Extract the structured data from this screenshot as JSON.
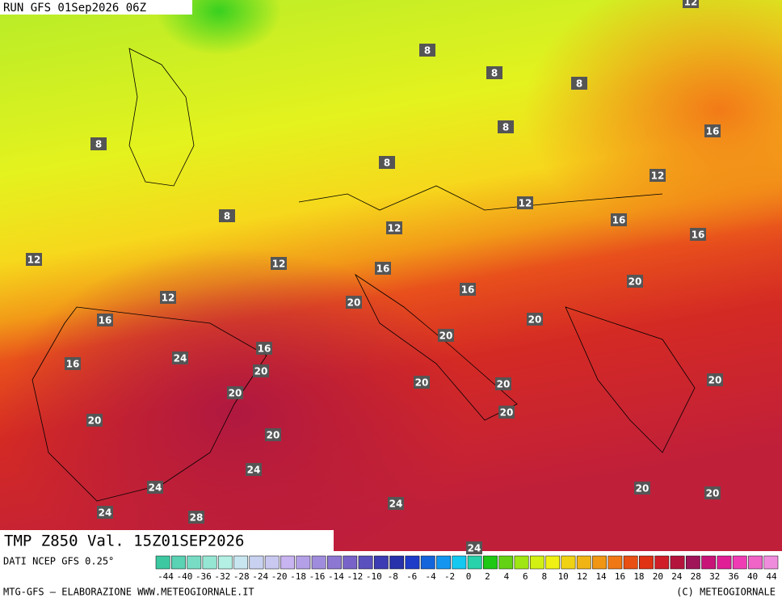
{
  "header": {
    "run": "RUN GFS 01Sep2026 06Z"
  },
  "map": {
    "labels": [
      "12",
      "8",
      "8",
      "8",
      "8",
      "8",
      "8",
      "8",
      "16",
      "12",
      "12",
      "16",
      "12",
      "16",
      "12",
      "12",
      "16",
      "20",
      "12",
      "16",
      "20",
      "16",
      "20",
      "20",
      "24",
      "16",
      "16",
      "20",
      "20",
      "20",
      "20",
      "20",
      "20",
      "20",
      "20",
      "24",
      "24",
      "20",
      "20",
      "24",
      "24",
      "28",
      "24"
    ]
  },
  "footer": {
    "title": "TMP Z850 Val. 15Z01SEP2026",
    "source": "DATI NCEP GFS 0.25°",
    "credit": "MTG-GFS — ELABORAZIONE WWW.METEOGIORNALE.IT",
    "copyright": "(C) METEOGIORNALE"
  },
  "colorbar": {
    "labels": [
      "-44",
      "-40",
      "-36",
      "-32",
      "-28",
      "-24",
      "-20",
      "-18",
      "-16",
      "-14",
      "-12",
      "-10",
      "-8",
      "-6",
      "-4",
      "-2",
      "0",
      "2",
      "4",
      "6",
      "8",
      "10",
      "12",
      "14",
      "16",
      "18",
      "20",
      "24",
      "28",
      "32",
      "36",
      "40",
      "44"
    ]
  }
}
